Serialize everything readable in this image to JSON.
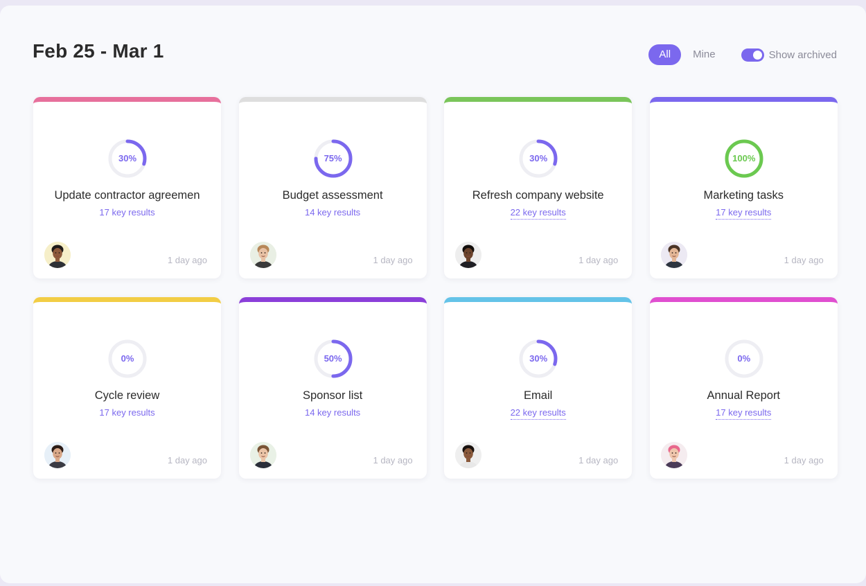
{
  "header": {
    "title": "Feb 25 - Mar 1",
    "filters": {
      "all_label": "All",
      "mine_label": "Mine",
      "selected": "All"
    },
    "archived_toggle": {
      "label": "Show archived",
      "on": true
    }
  },
  "colors": {
    "accent": "#7b68ee",
    "complete": "#6bc950"
  },
  "cards": [
    {
      "title": "Update contractor agreemen",
      "progress": 30,
      "progress_label": "30%",
      "key_results": "17 key results",
      "updated": "1 day ago",
      "top_color": "#e7709c",
      "avatar": {
        "skin": "#8d5a3b",
        "hair": "#1e1a18",
        "bg": "#f6efc9",
        "shirt": "#2d3035"
      },
      "dotted": false
    },
    {
      "title": "Budget assessment",
      "progress": 75,
      "progress_label": "75%",
      "key_results": "14 key results",
      "updated": "1 day ago",
      "top_color": "#dedede",
      "avatar": {
        "skin": "#e8c1a4",
        "hair": "#b78758",
        "bg": "#e9efe4",
        "shirt": "#3a3a3a"
      },
      "dotted": false
    },
    {
      "title": "Refresh company website",
      "progress": 30,
      "progress_label": "30%",
      "key_results": "22 key results",
      "updated": "1 day ago",
      "top_color": "#7ac55a",
      "avatar": {
        "skin": "#6b432c",
        "hair": "#120d0b",
        "bg": "#eeeeee",
        "shirt": "#1f1f24"
      },
      "dotted": true
    },
    {
      "title": "Marketing tasks",
      "progress": 100,
      "progress_label": "100%",
      "key_results": "17 key results",
      "updated": "1 day ago",
      "top_color": "#7b68ee",
      "avatar": {
        "skin": "#e3b696",
        "hair": "#4a3426",
        "bg": "#ece9f3",
        "shirt": "#2e3540"
      },
      "dotted": true
    },
    {
      "title": "Cycle review",
      "progress": 0,
      "progress_label": "0%",
      "key_results": "17 key results",
      "updated": "1 day ago",
      "top_color": "#f2cd45",
      "avatar": {
        "skin": "#d9a889",
        "hair": "#2a1b16",
        "bg": "#e7f0f8",
        "shirt": "#3b3b44"
      },
      "dotted": false
    },
    {
      "title": "Sponsor list",
      "progress": 50,
      "progress_label": "50%",
      "key_results": "14 key results",
      "updated": "1 day ago",
      "top_color": "#8b3fd9",
      "avatar": {
        "skin": "#ebc4a7",
        "hair": "#7a5436",
        "bg": "#e9f1e6",
        "shirt": "#2b2f3a"
      },
      "dotted": false
    },
    {
      "title": "Email",
      "progress": 30,
      "progress_label": "30%",
      "key_results": "22 key results",
      "updated": "1 day ago",
      "top_color": "#64c3e8",
      "avatar": {
        "skin": "#8a5a3c",
        "hair": "#18110e",
        "bg": "#efefef",
        "shirt": "#e8e8e8"
      },
      "dotted": true
    },
    {
      "title": "Annual Report",
      "progress": 0,
      "progress_label": "0%",
      "key_results": "17 key results",
      "updated": "1 day ago",
      "top_color": "#e04fd0",
      "avatar": {
        "skin": "#efc6ad",
        "hair": "#e8678c",
        "bg": "#f5ecef",
        "shirt": "#4b3b58"
      },
      "dotted": true
    }
  ]
}
